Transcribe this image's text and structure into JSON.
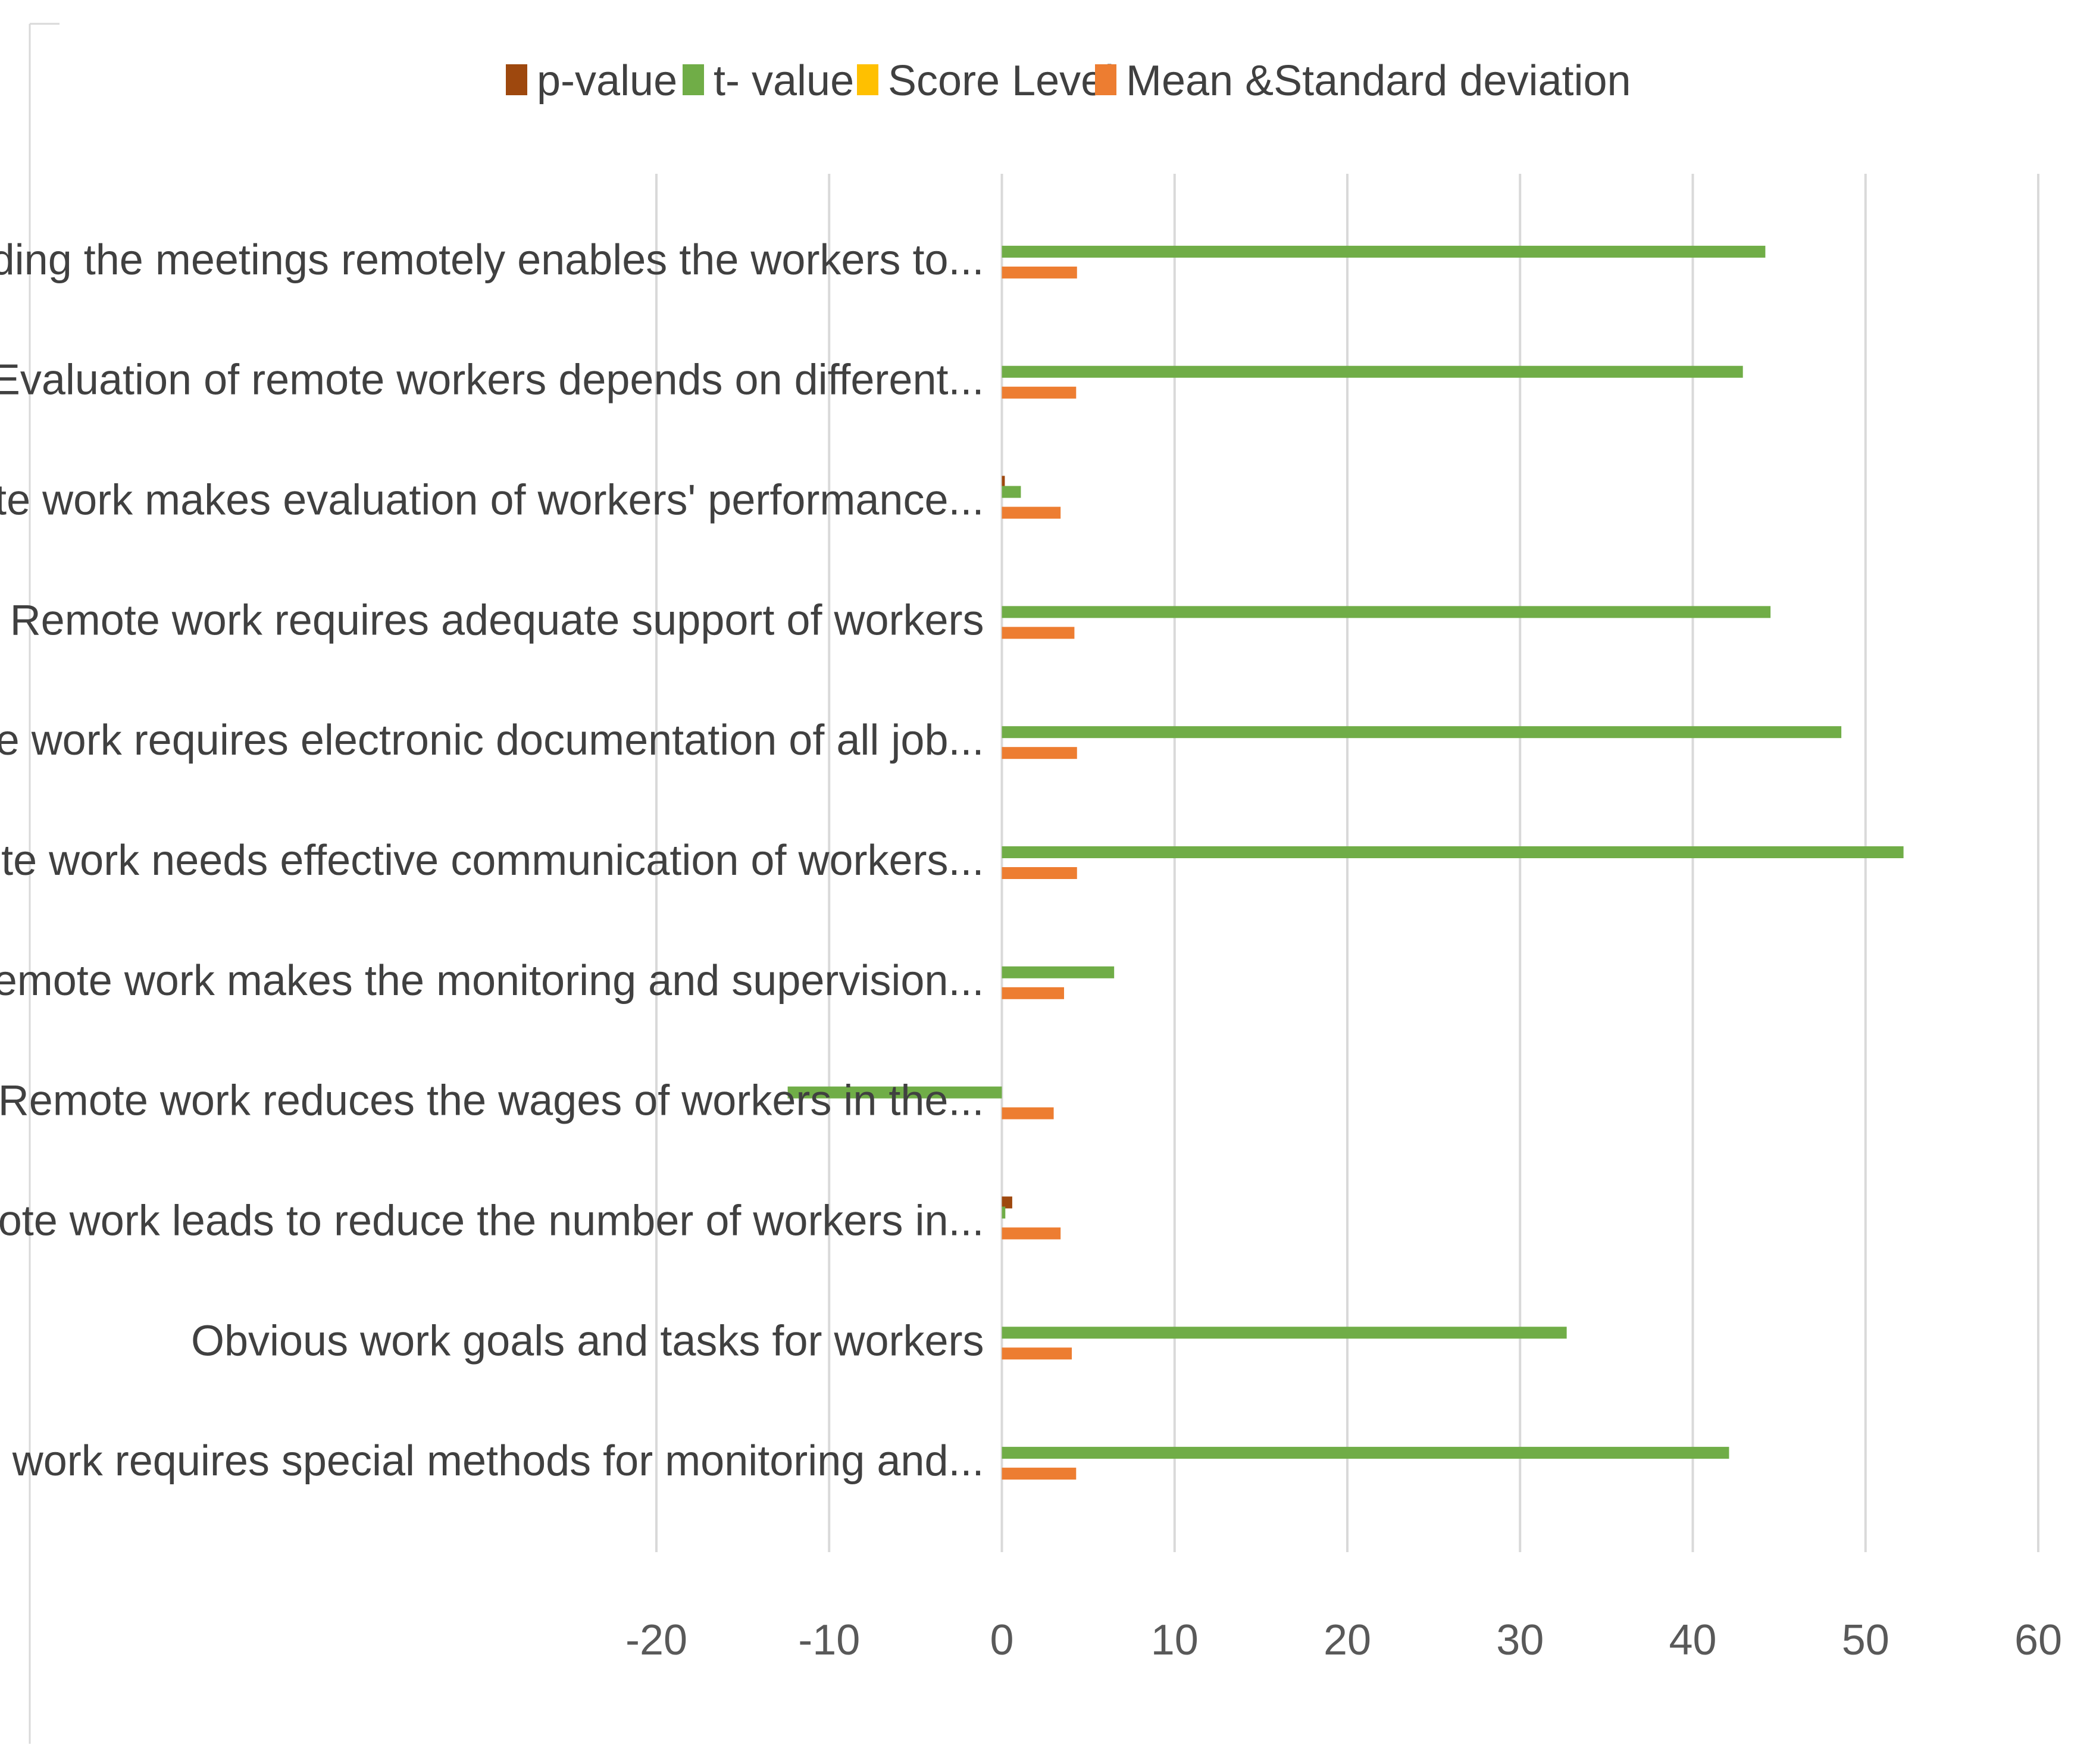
{
  "chart_data": {
    "type": "bar",
    "orientation": "horizontal",
    "title": "",
    "xlabel": "",
    "ylabel": "",
    "xlim": [
      -20,
      60
    ],
    "xticks": [
      "-20",
      "-10",
      "0",
      "10",
      "20",
      "30",
      "40",
      "50",
      "60"
    ],
    "grid": true,
    "legend_position": "top",
    "categories": [
      "Holding the meetings remotely enables the workers to...",
      "Evaluation of remote workers depends on different...",
      "Remote work makes evaluation of workers' performance...",
      "Remote work requires adequate support of workers",
      "Remote work requires electronic documentation of all job...",
      "Remote work needs effective communication of workers...",
      "Remote work makes the monitoring and supervision...",
      "Remote work reduces the wages of workers in the...",
      "Remote work leads to reduce the number of workers in...",
      "Obvious work goals and tasks for workers",
      "Remote work requires special methods for monitoring and..."
    ],
    "series": [
      {
        "name": "p-value",
        "color": "#9e480e",
        "values": [
          0,
          0,
          0.17,
          0,
          0,
          0,
          0,
          0,
          0.6,
          0,
          0
        ]
      },
      {
        "name": "t- value",
        "color": "#70ad47",
        "values": [
          44.2,
          42.9,
          1.1,
          44.5,
          48.6,
          52.2,
          6.5,
          -12.4,
          0.2,
          32.7,
          42.1
        ]
      },
      {
        "name": "Score Level",
        "color": "#ffc000",
        "values": [
          0,
          0,
          0,
          0,
          0,
          0,
          0,
          0,
          0,
          0,
          0
        ]
      },
      {
        "name": "Mean &Standard deviation",
        "color": "#ed7d31",
        "values": [
          4.35,
          4.3,
          3.4,
          4.2,
          4.35,
          4.35,
          3.6,
          3.0,
          3.4,
          4.05,
          4.3
        ]
      }
    ]
  }
}
